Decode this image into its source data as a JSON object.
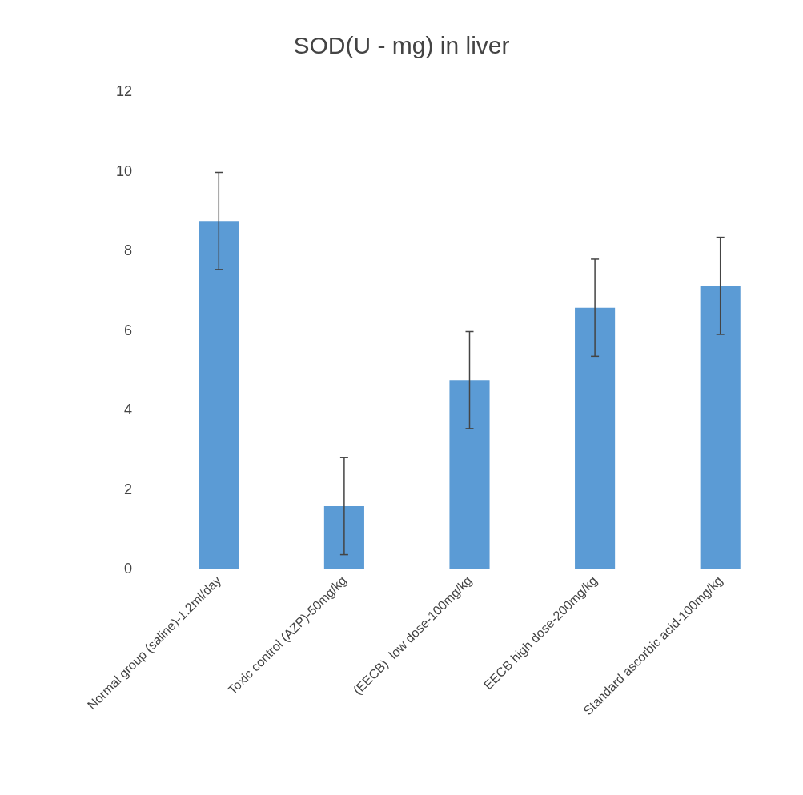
{
  "chart_data": {
    "type": "bar",
    "title": "SOD(U - mg) in liver",
    "categories": [
      "Normal group (saline)-1.2ml/day",
      "Toxic control (AZP)-50mg/kg",
      "(EECB)  low dose-100mg/kg",
      "EECB high dose-200mg/kg",
      "Standard ascorbic acid-100mg/kg"
    ],
    "values": [
      8.74,
      1.57,
      4.74,
      6.56,
      7.11
    ],
    "errors": [
      1.22,
      1.22,
      1.22,
      1.22,
      1.22
    ],
    "color": "#5b9bd5",
    "ylim": [
      0,
      12
    ],
    "yticks": [
      0,
      2,
      4,
      6,
      8,
      10,
      12
    ],
    "grid": false
  }
}
